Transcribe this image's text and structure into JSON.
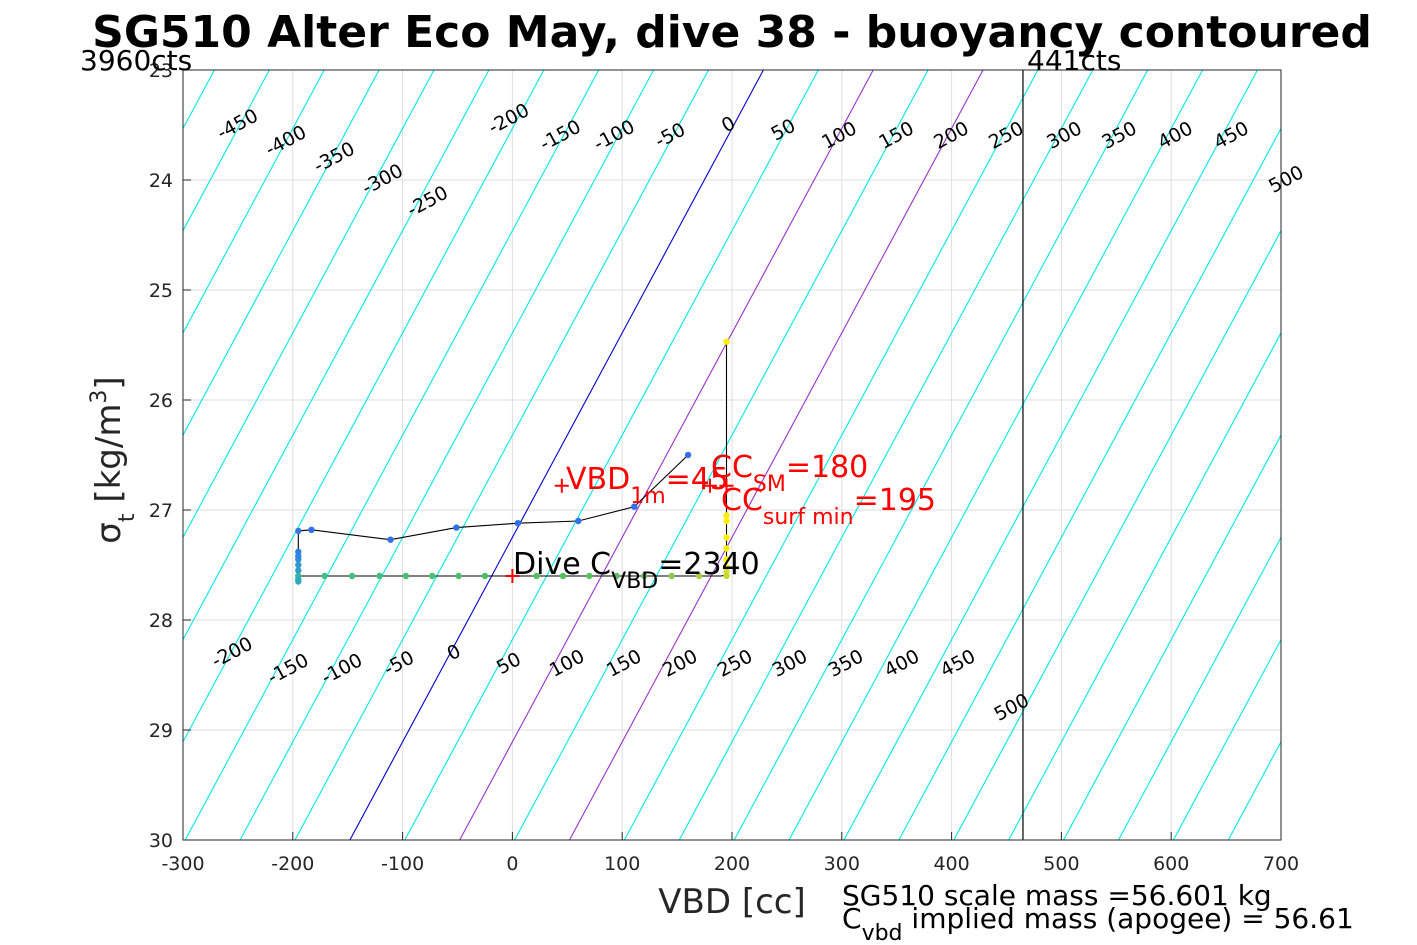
{
  "chart_data": {
    "type": "line",
    "title": "SG510 Alter Eco May, dive 38 - buoyancy contoured",
    "xlabel": "VBD [cc]",
    "ylabel": {
      "main": "σ",
      "sub": "t",
      "unit": " [kg/m",
      "sup": "3",
      "close": "]"
    },
    "xlim": [
      -300,
      700
    ],
    "ylim": [
      23,
      30
    ],
    "yreversed": true,
    "grid": true,
    "xticks": [
      -300,
      -200,
      -100,
      0,
      100,
      200,
      300,
      400,
      500,
      600,
      700
    ],
    "yticks": [
      23,
      24,
      25,
      26,
      27,
      28,
      29,
      30
    ],
    "corner_labels": {
      "left": "3960cts",
      "right": "441cts"
    },
    "vbd_limit_line_x": 465,
    "contours": {
      "levels": [
        -450,
        -400,
        -350,
        -300,
        -250,
        -200,
        -150,
        -100,
        -50,
        0,
        50,
        100,
        150,
        200,
        250,
        300,
        350,
        400,
        450,
        500
      ],
      "slope_vbd_per_sigma": 53.8,
      "zero_line_vbd_at_sigma30": -148,
      "spacing_vbd": 50,
      "top_labels": [
        {
          "text": "-450",
          "x": -250,
          "y": 23.5
        },
        {
          "text": "-400",
          "x": -206,
          "y": 23.65
        },
        {
          "text": "-350",
          "x": -162,
          "y": 23.8
        },
        {
          "text": "-300",
          "x": -118,
          "y": 24.0
        },
        {
          "text": "-250",
          "x": -77,
          "y": 24.2
        },
        {
          "text": "-200",
          "x": -3,
          "y": 23.45
        },
        {
          "text": "-150",
          "x": 44,
          "y": 23.6
        },
        {
          "text": "-100",
          "x": 93,
          "y": 23.6
        },
        {
          "text": "-50",
          "x": 144,
          "y": 23.6
        },
        {
          "text": "0",
          "x": 197,
          "y": 23.5
        },
        {
          "text": "50",
          "x": 247,
          "y": 23.55
        },
        {
          "text": "100",
          "x": 298,
          "y": 23.6
        },
        {
          "text": "150",
          "x": 350,
          "y": 23.6
        },
        {
          "text": "200",
          "x": 400,
          "y": 23.6
        },
        {
          "text": "250",
          "x": 450,
          "y": 23.6
        },
        {
          "text": "300",
          "x": 503,
          "y": 23.6
        },
        {
          "text": "350",
          "x": 553,
          "y": 23.6
        },
        {
          "text": "400",
          "x": 604,
          "y": 23.6
        },
        {
          "text": "450",
          "x": 655,
          "y": 23.6
        },
        {
          "text": "500",
          "x": 705,
          "y": 24.0
        }
      ],
      "bottom_labels": [
        {
          "text": "-200",
          "x": -255,
          "y": 28.3
        },
        {
          "text": "-150",
          "x": -204,
          "y": 28.45
        },
        {
          "text": "-100",
          "x": -155,
          "y": 28.45
        },
        {
          "text": "-50",
          "x": -103,
          "y": 28.4
        },
        {
          "text": "0",
          "x": -53,
          "y": 28.3
        },
        {
          "text": "50",
          "x": -3,
          "y": 28.4
        },
        {
          "text": "100",
          "x": 50,
          "y": 28.4
        },
        {
          "text": "150",
          "x": 102,
          "y": 28.4
        },
        {
          "text": "200",
          "x": 153,
          "y": 28.4
        },
        {
          "text": "250",
          "x": 203,
          "y": 28.4
        },
        {
          "text": "300",
          "x": 253,
          "y": 28.4
        },
        {
          "text": "350",
          "x": 304,
          "y": 28.4
        },
        {
          "text": "400",
          "x": 355,
          "y": 28.4
        },
        {
          "text": "450",
          "x": 406,
          "y": 28.4
        },
        {
          "text": "500",
          "x": 455,
          "y": 28.8
        }
      ]
    },
    "highlight_lines": [
      {
        "level": 0,
        "color": "#0000cc"
      },
      {
        "level": 100,
        "color": "#9933cc"
      },
      {
        "level": 200,
        "color": "#9933cc"
      }
    ],
    "series": [
      {
        "color": "#000000",
        "x": [
          195,
          195,
          195,
          195,
          195,
          195,
          195,
          195,
          195,
          195,
          195,
          195,
          195,
          195,
          195,
          190,
          175,
          160,
          140,
          120,
          100,
          80,
          60,
          40,
          20,
          0,
          -25,
          -50,
          -75,
          -100,
          -125,
          -150,
          -175,
          -195,
          -195,
          -195,
          -195,
          -195,
          -195,
          -195,
          -195,
          -195,
          -195,
          -195,
          -195,
          -195,
          -183,
          -111,
          -51,
          5,
          60,
          111,
          160
        ],
        "y": [
          25.47,
          26.8,
          27.0,
          27.05,
          27.1,
          27.25,
          27.35,
          27.45,
          27.5,
          27.52,
          27.55,
          27.56,
          27.57,
          27.58,
          27.59,
          27.6,
          27.6,
          27.6,
          27.6,
          27.6,
          27.6,
          27.6,
          27.6,
          27.6,
          27.6,
          27.6,
          27.6,
          27.6,
          27.6,
          27.6,
          27.6,
          27.6,
          27.6,
          27.6,
          27.65,
          27.62,
          27.6,
          27.55,
          27.5,
          27.47,
          27.45,
          27.43,
          27.4,
          27.35,
          27.3,
          27.19,
          27.18,
          27.27,
          27.16,
          27.12,
          27.1,
          26.97,
          26.5
        ]
      }
    ],
    "points": [
      {
        "x": 195,
        "y": 25.47,
        "color": "#ffee00"
      },
      {
        "x": 195,
        "y": 27.05,
        "color": "#ffee00"
      },
      {
        "x": 195,
        "y": 27.1,
        "color": "#ffee00"
      },
      {
        "x": 195,
        "y": 27.25,
        "color": "#ffee00"
      },
      {
        "x": 195,
        "y": 27.35,
        "color": "#ffee00"
      },
      {
        "x": 195,
        "y": 27.45,
        "color": "#ffee00"
      },
      {
        "x": 195,
        "y": 27.52,
        "color": "#ffee00"
      },
      {
        "x": 195,
        "y": 27.56,
        "color": "#d0e030"
      },
      {
        "x": 195,
        "y": 27.6,
        "color": "#c8d830"
      },
      {
        "x": 170,
        "y": 27.6,
        "color": "#a8d040"
      },
      {
        "x": 145,
        "y": 27.6,
        "color": "#88c850"
      },
      {
        "x": 120,
        "y": 27.6,
        "color": "#70c060"
      },
      {
        "x": 95,
        "y": 27.6,
        "color": "#60c060"
      },
      {
        "x": 70,
        "y": 27.6,
        "color": "#5ac060"
      },
      {
        "x": 46,
        "y": 27.6,
        "color": "#55c060"
      },
      {
        "x": 22,
        "y": 27.6,
        "color": "#50c060"
      },
      {
        "x": -25,
        "y": 27.6,
        "color": "#4cc060"
      },
      {
        "x": -49,
        "y": 27.6,
        "color": "#4cc068"
      },
      {
        "x": -73,
        "y": 27.6,
        "color": "#48c070"
      },
      {
        "x": -97,
        "y": 27.6,
        "color": "#45c070"
      },
      {
        "x": -121,
        "y": 27.6,
        "color": "#42c078"
      },
      {
        "x": -146,
        "y": 27.6,
        "color": "#40c080"
      },
      {
        "x": -171,
        "y": 27.6,
        "color": "#40c088"
      },
      {
        "x": -195,
        "y": 27.6,
        "color": "#38b8a0"
      },
      {
        "x": -195,
        "y": 27.63,
        "color": "#30b0b0"
      },
      {
        "x": -195,
        "y": 27.65,
        "color": "#30a8c0"
      },
      {
        "x": -195,
        "y": 27.55,
        "color": "#30a0c8"
      },
      {
        "x": -195,
        "y": 27.5,
        "color": "#3098d0"
      },
      {
        "x": -195,
        "y": 27.45,
        "color": "#3090d8"
      },
      {
        "x": -195,
        "y": 27.42,
        "color": "#3088e0"
      },
      {
        "x": -195,
        "y": 27.38,
        "color": "#3080e0"
      },
      {
        "x": -195,
        "y": 27.19,
        "color": "#3078e8"
      },
      {
        "x": -183,
        "y": 27.18,
        "color": "#3070e8"
      },
      {
        "x": -111,
        "y": 27.27,
        "color": "#3070e8"
      },
      {
        "x": -51,
        "y": 27.16,
        "color": "#3070e8"
      },
      {
        "x": 5,
        "y": 27.12,
        "color": "#3070e8"
      },
      {
        "x": 60,
        "y": 27.1,
        "color": "#3070e8"
      },
      {
        "x": 111,
        "y": 26.97,
        "color": "#3070e8"
      },
      {
        "x": 160,
        "y": 26.5,
        "color": "#3070e8"
      }
    ],
    "markers": [
      {
        "x": 45,
        "y": 26.78,
        "color": "#ff0000"
      },
      {
        "x": 180,
        "y": 26.78,
        "color": "#ff0000"
      },
      {
        "x": 195,
        "y": 26.78,
        "color": "#ff0000"
      },
      {
        "x": 0,
        "y": 27.6,
        "color": "#ff0000"
      }
    ],
    "annotations": {
      "vbd_1m": {
        "prefix": "VBD",
        "sub": "1m",
        "value": "=45"
      },
      "cc_sm": {
        "prefix": "CC",
        "sub": "SM",
        "value": "=180"
      },
      "cc_surf": {
        "prefix": "CC",
        "sub": "surf min",
        "value": "=195"
      },
      "dive_c": {
        "prefix": "Dive C",
        "sub": "VBD",
        "value": "=2340"
      }
    },
    "footer": {
      "scale_mass": "SG510 scale mass =56.601 kg",
      "implied_prefix": "C",
      "implied_sub": "vbd",
      "implied_rest": " implied mass (apogee) = 56.61"
    }
  }
}
